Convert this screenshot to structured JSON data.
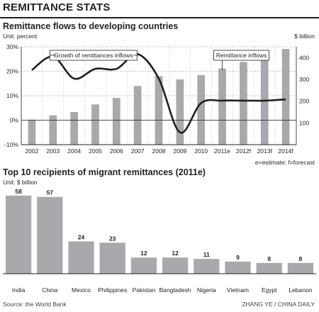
{
  "header": {
    "title": "REMITTANCE STATS"
  },
  "chart1_meta": {
    "subtitle": "Remittance flows to developing countries",
    "unit_left": "Unit: percent",
    "unit_right": "$ billion",
    "note": "e=estimate; f=forecast"
  },
  "chart2_meta": {
    "subtitle": "Top 10 recipients of migrant remittances (2011e)",
    "unit": "Unit: $ billion"
  },
  "footer": {
    "source": "Source: the World Bank",
    "credit": "ZHANG YE / CHINA DAILY"
  },
  "colors": {
    "bar": "#a7a9ac",
    "line": "#231f20",
    "text": "#231f20"
  },
  "chart_data": [
    {
      "type": "bar+line",
      "title": "Remittance flows to developing countries",
      "categories": [
        "2002",
        "2003",
        "2004",
        "2005",
        "2006",
        "2007",
        "2008",
        "2009",
        "2010",
        "2011e",
        "2012f",
        "2013f",
        "2014f"
      ],
      "series": [
        {
          "name": "Remittance inflows",
          "type": "bar",
          "axis": "right",
          "values": [
            115,
            135,
            150,
            185,
            215,
            270,
            315,
            300,
            320,
            350,
            380,
            410,
            440
          ]
        },
        {
          "name": "Growth of remittances inflows",
          "type": "line",
          "axis": "left",
          "values": [
            20.5,
            26,
            17,
            21,
            21,
            27,
            17,
            -5,
            7,
            8,
            8,
            8,
            8.5
          ]
        }
      ],
      "y_left": {
        "label": "Unit: percent",
        "ticks": [
          "30%",
          "20%",
          "10%",
          "0%",
          "-10%"
        ],
        "values": [
          30,
          20,
          10,
          0,
          -10
        ],
        "range": [
          -10,
          30
        ]
      },
      "y_right": {
        "label": "$ billion",
        "ticks": [
          "400",
          "300",
          "200",
          "100"
        ],
        "values": [
          400,
          300,
          200,
          100
        ],
        "range": [
          0,
          450
        ]
      },
      "annotations": [
        "Growth of remittances inflows",
        "Remittance inflows"
      ],
      "note": "e=estimate; f=forecast",
      "grid": "dotted horizontal"
    },
    {
      "type": "bar",
      "title": "Top 10 recipients of migrant remittances (2011e)",
      "unit": "Unit: $ billion",
      "categories": [
        "India",
        "China",
        "Mexico",
        "Philippines",
        "Pakistan",
        "Bangladesh",
        "Nigeria",
        "Vietnam",
        "Egypt",
        "Lebanon"
      ],
      "values": [
        58,
        57,
        24,
        23,
        12,
        12,
        11,
        9,
        8,
        8
      ],
      "value_labels": [
        "58",
        "57",
        "24",
        "23",
        "12",
        "12",
        "11",
        "9",
        "8",
        "8"
      ]
    }
  ]
}
